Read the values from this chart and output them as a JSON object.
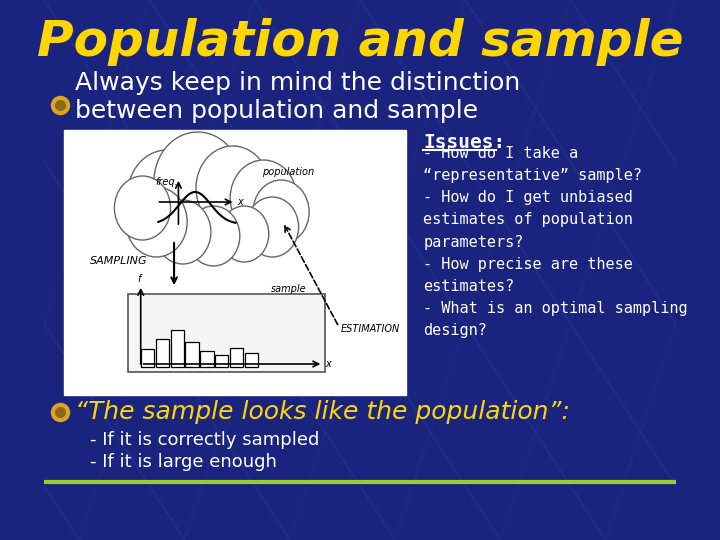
{
  "title": "Population and sample",
  "title_color": "#FFD700",
  "title_fontsize": 36,
  "bg_color": "#1a237e",
  "bullet_color": "#DAA520",
  "bullet1_text": "Always keep in mind the distinction\nbetween population and sample",
  "bullet1_color": "#FFFFFF",
  "bullet1_fontsize": 18,
  "issues_title": "Issues:",
  "issues_title_color": "#FFFFFF",
  "issues_title_fontsize": 14,
  "issues_text": "- How do I take a\n“representative” sample?\n- How do I get unbiased\nestimates of population\nparameters?\n- How precise are these\nestimates?\n- What is an optimal sampling\ndesign?",
  "issues_text_color": "#FFFFFF",
  "issues_fontsize": 11,
  "bullet2_text": "“The sample looks like the population”:",
  "bullet2_color": "#FFD700",
  "bullet2_fontsize": 18,
  "sub1": "If it is correctly sampled",
  "sub2": "If it is large enough",
  "sub_color": "#FFFFFF",
  "sub_fontsize": 13,
  "bottom_line_color": "#9ACD32",
  "diag_color": "#2244aa"
}
